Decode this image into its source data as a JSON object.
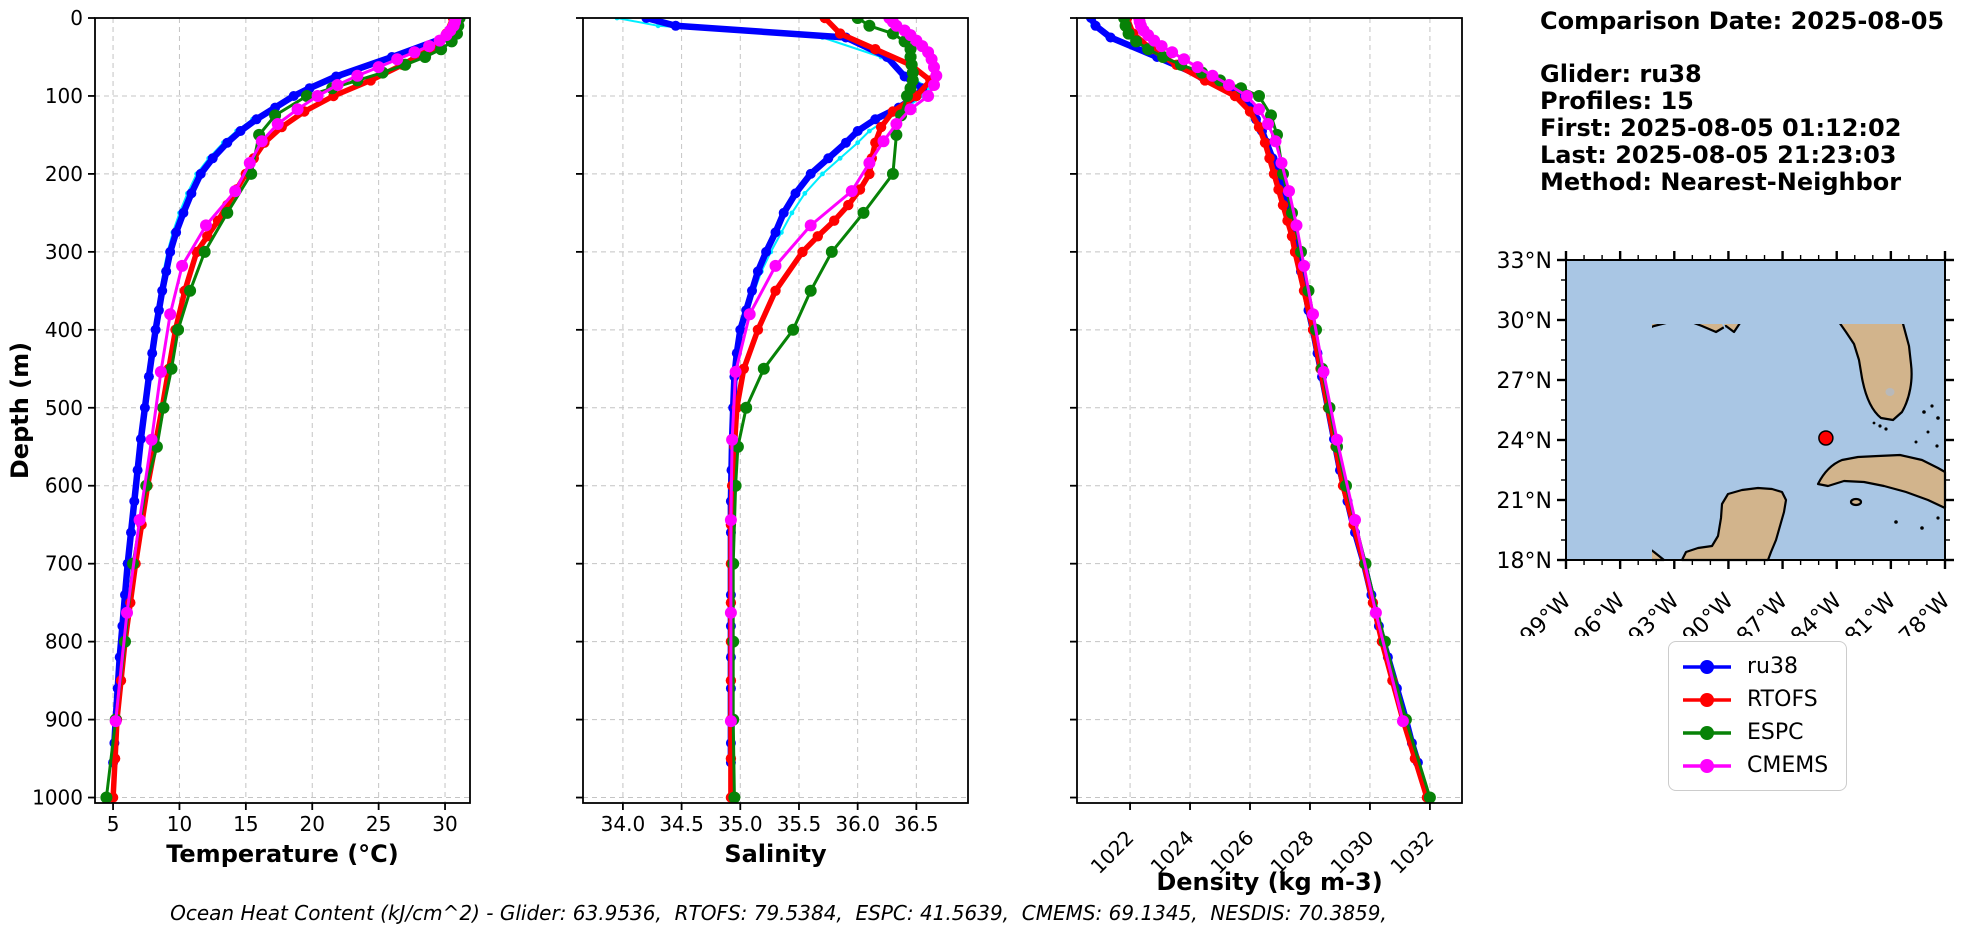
{
  "info": {
    "comparison_date": "Comparison Date: 2025-08-05",
    "glider": "Glider: ru38",
    "profiles": "Profiles: 15",
    "first": "First: 2025-08-05 01:12:02",
    "last": "Last: 2025-08-05 21:23:03",
    "method": "Method: Nearest-Neighbor"
  },
  "footer": {
    "ohc": "Ocean Heat Content (kJ/cm^2) - Glider: 63.9536,  RTOFS: 79.5384,  ESPC: 41.5639,  CMEMS: 69.1345,  NESDIS: 70.3859,"
  },
  "map": {
    "lat_tick_values": [
      33,
      30,
      27,
      24,
      21,
      18
    ],
    "lat_tick_labels": [
      "33°N",
      "30°N",
      "27°N",
      "24°N",
      "21°N",
      "18°N"
    ],
    "lon_tick_values": [
      99,
      96,
      93,
      90,
      87,
      84,
      81,
      78
    ],
    "lon_tick_labels": [
      "99°W",
      "96°W",
      "93°W",
      "90°W",
      "87°W",
      "84°W",
      "81°W",
      "78°W"
    ],
    "lon_range": [
      99,
      78
    ],
    "lat_range": [
      33,
      18
    ],
    "land_color": "#d2b48c",
    "ocean_color": "#a9c6e4",
    "coastline_color": "#000000",
    "river_color": "#a6c8ea",
    "marker": {
      "lon": 84.6,
      "lat": 24.1,
      "color": "#ff0000"
    }
  },
  "chart_data": {
    "type": "line",
    "subtype": "depth-profiles",
    "grid": true,
    "depth_axis": {
      "label": "Depth (m)",
      "tick_values": [
        0,
        100,
        200,
        300,
        400,
        500,
        600,
        700,
        800,
        900,
        1000
      ],
      "tick_labels": [
        "0",
        "100",
        "200",
        "300",
        "400",
        "500",
        "600",
        "700",
        "800",
        "900",
        "1000"
      ],
      "range": [
        0,
        1007
      ]
    },
    "panels": [
      {
        "key": "temperature",
        "xlabel": "Temperature (°C)",
        "tick_values": [
          5,
          10,
          15,
          20,
          25,
          30
        ],
        "tick_labels": [
          "5",
          "10",
          "15",
          "20",
          "25",
          "30"
        ],
        "range": [
          3.64,
          31.88
        ],
        "tick_rotation": 0
      },
      {
        "key": "salinity",
        "xlabel": "Salinity",
        "tick_values": [
          34.0,
          34.5,
          35.0,
          35.5,
          36.0,
          36.5
        ],
        "tick_labels": [
          "34.0",
          "34.5",
          "35.0",
          "35.5",
          "36.0",
          "36.5"
        ],
        "range": [
          33.66,
          36.94
        ],
        "tick_rotation": 0
      },
      {
        "key": "density",
        "xlabel": "Density (kg m-3)",
        "tick_values": [
          1022,
          1024,
          1026,
          1028,
          1030,
          1032
        ],
        "tick_labels": [
          "1022",
          "1024",
          "1026",
          "1028",
          "1030",
          "1032"
        ],
        "range": [
          1020.23,
          1033.07
        ],
        "tick_rotation": 45
      }
    ],
    "series": [
      {
        "name": "glider-raw",
        "color": "#00eeff",
        "line_width": 2,
        "marker_radius": 2.4,
        "in_legend": false,
        "depths": [
          0,
          10,
          25,
          50,
          75,
          90,
          100,
          115,
          130,
          145,
          160,
          180,
          200,
          225,
          250,
          275,
          300,
          325,
          350,
          375,
          400,
          430,
          460,
          500,
          540,
          580,
          620,
          660,
          700,
          740,
          780,
          820,
          860,
          900,
          930,
          955
        ],
        "temperature": [
          30.9,
          30.8,
          30.3,
          26.5,
          22.1,
          20.0,
          18.8,
          17.0,
          15.5,
          14.3,
          13.3,
          12.2,
          11.3,
          10.6,
          10.0,
          9.5,
          9.1,
          8.8,
          8.55,
          8.3,
          8.05,
          7.8,
          7.6,
          7.3,
          7.0,
          6.75,
          6.5,
          6.25,
          6.0,
          5.8,
          5.6,
          5.45,
          5.3,
          5.15,
          5.05,
          4.95
        ],
        "salinity": [
          33.95,
          34.3,
          35.7,
          36.2,
          36.45,
          36.6,
          36.55,
          36.42,
          36.25,
          36.1,
          36.0,
          35.85,
          35.7,
          35.55,
          35.44,
          35.35,
          35.26,
          35.18,
          35.12,
          35.07,
          35.02,
          34.98,
          34.95,
          34.93,
          34.92,
          34.91,
          34.91,
          34.91,
          34.91,
          34.91,
          34.91,
          34.91,
          34.91,
          34.91,
          34.91,
          34.91
        ],
        "density": [
          1020.6,
          1020.75,
          1021.25,
          1022.8,
          1024.3,
          1025.1,
          1025.65,
          1025.9,
          1026.1,
          1026.3,
          1026.45,
          1026.65,
          1026.85,
          1027.05,
          1027.2,
          1027.35,
          1027.5,
          1027.62,
          1027.77,
          1027.88,
          1028.02,
          1028.18,
          1028.33,
          1028.53,
          1028.73,
          1028.93,
          1029.18,
          1029.43,
          1029.73,
          1029.98,
          1030.23,
          1030.53,
          1030.83,
          1031.13,
          1031.33,
          1031.53
        ]
      },
      {
        "name": "ru38",
        "color": "#0000ff",
        "line_width": 6.5,
        "marker_radius": 5,
        "in_legend": true,
        "depths": [
          0,
          10,
          25,
          50,
          75,
          90,
          100,
          115,
          130,
          145,
          160,
          180,
          200,
          225,
          250,
          275,
          300,
          325,
          350,
          375,
          400,
          430,
          460,
          500,
          540,
          580,
          620,
          660,
          700,
          740,
          780,
          820,
          860,
          900,
          930,
          955
        ],
        "temperature": [
          30.9,
          30.7,
          30.0,
          26.0,
          21.8,
          19.8,
          18.6,
          17.2,
          15.8,
          14.6,
          13.6,
          12.5,
          11.6,
          10.9,
          10.3,
          9.75,
          9.3,
          9.0,
          8.7,
          8.45,
          8.2,
          7.95,
          7.7,
          7.4,
          7.1,
          6.85,
          6.6,
          6.35,
          6.1,
          5.9,
          5.7,
          5.5,
          5.35,
          5.2,
          5.1,
          5.0
        ],
        "salinity": [
          34.2,
          34.45,
          35.9,
          36.25,
          36.4,
          36.55,
          36.5,
          36.35,
          36.15,
          36.0,
          35.9,
          35.75,
          35.6,
          35.47,
          35.37,
          35.3,
          35.22,
          35.15,
          35.1,
          35.05,
          35.0,
          34.97,
          34.95,
          34.94,
          34.93,
          34.925,
          34.92,
          34.92,
          34.92,
          34.92,
          34.92,
          34.92,
          34.92,
          34.92,
          34.92,
          34.92
        ],
        "density": [
          1020.7,
          1020.85,
          1021.35,
          1022.9,
          1024.4,
          1025.2,
          1025.75,
          1026.0,
          1026.2,
          1026.4,
          1026.55,
          1026.75,
          1026.95,
          1027.15,
          1027.3,
          1027.45,
          1027.6,
          1027.7,
          1027.85,
          1027.95,
          1028.1,
          1028.25,
          1028.4,
          1028.6,
          1028.8,
          1029.0,
          1029.25,
          1029.5,
          1029.8,
          1030.05,
          1030.3,
          1030.6,
          1030.9,
          1031.2,
          1031.4,
          1031.6
        ]
      },
      {
        "name": "RTOFS",
        "color": "#ff0000",
        "line_width": 5.5,
        "marker_radius": 5.2,
        "in_legend": true,
        "depths": [
          0,
          20,
          40,
          60,
          80,
          100,
          120,
          140,
          160,
          180,
          200,
          220,
          240,
          260,
          280,
          300,
          350,
          400,
          450,
          500,
          550,
          600,
          650,
          700,
          750,
          800,
          850,
          900,
          950,
          1000
        ],
        "temperature": [
          30.6,
          30.1,
          28.9,
          26.8,
          24.4,
          21.6,
          19.4,
          17.7,
          16.4,
          15.6,
          15.0,
          14.3,
          13.6,
          12.9,
          12.1,
          11.3,
          10.4,
          9.7,
          9.2,
          8.7,
          8.15,
          7.6,
          7.15,
          6.7,
          6.3,
          5.9,
          5.6,
          5.3,
          5.15,
          5.0
        ],
        "salinity": [
          35.72,
          35.85,
          36.15,
          36.45,
          36.62,
          36.5,
          36.3,
          36.2,
          36.15,
          36.12,
          36.1,
          36.02,
          35.92,
          35.8,
          35.66,
          35.53,
          35.3,
          35.15,
          35.03,
          34.97,
          34.95,
          34.93,
          34.92,
          34.92,
          34.92,
          34.92,
          34.92,
          34.92,
          34.92,
          34.92
        ],
        "density": [
          1021.9,
          1022.1,
          1022.7,
          1023.55,
          1024.5,
          1025.5,
          1026.0,
          1026.3,
          1026.5,
          1026.65,
          1026.8,
          1026.95,
          1027.1,
          1027.25,
          1027.4,
          1027.5,
          1027.8,
          1028.1,
          1028.35,
          1028.6,
          1028.85,
          1029.1,
          1029.45,
          1029.8,
          1030.1,
          1030.4,
          1030.75,
          1031.1,
          1031.5,
          1031.9
        ]
      },
      {
        "name": "ESPC",
        "color": "#078207",
        "line_width": 3,
        "marker_radius": 6,
        "in_legend": true,
        "depths": [
          0,
          10,
          20,
          30,
          40,
          50,
          60,
          70,
          80,
          90,
          100,
          125,
          150,
          200,
          250,
          300,
          350,
          400,
          450,
          500,
          550,
          600,
          700,
          800,
          900,
          1000
        ],
        "temperature": [
          31.1,
          31.0,
          30.9,
          30.5,
          29.7,
          28.5,
          27.0,
          25.3,
          23.4,
          21.5,
          19.6,
          17.2,
          16.0,
          15.4,
          13.6,
          11.9,
          10.8,
          9.9,
          9.4,
          8.8,
          8.3,
          7.5,
          6.5,
          5.9,
          5.2,
          4.5
        ],
        "salinity": [
          36.0,
          36.1,
          36.3,
          36.4,
          36.45,
          36.45,
          36.46,
          36.47,
          36.47,
          36.45,
          36.42,
          36.37,
          36.33,
          36.3,
          36.05,
          35.78,
          35.6,
          35.45,
          35.2,
          35.05,
          34.98,
          34.96,
          34.94,
          34.94,
          34.94,
          34.95
        ],
        "density": [
          1021.8,
          1021.85,
          1021.95,
          1022.2,
          1022.6,
          1023.1,
          1023.7,
          1024.4,
          1025.0,
          1025.7,
          1026.3,
          1026.7,
          1026.9,
          1027.1,
          1027.4,
          1027.7,
          1027.95,
          1028.2,
          1028.4,
          1028.65,
          1028.9,
          1029.2,
          1029.85,
          1030.5,
          1031.2,
          1032.0
        ]
      },
      {
        "name": "CMEMS",
        "color": "#ff00ff",
        "line_width": 3,
        "marker_radius": 6,
        "in_legend": true,
        "depths": [
          0,
          5,
          10,
          16,
          22,
          29,
          36,
          44,
          53,
          63,
          74,
          86,
          100,
          117,
          136,
          158,
          186,
          222,
          266,
          318,
          380,
          454,
          541,
          644,
          763,
          902
        ],
        "temperature": [
          30.8,
          30.75,
          30.65,
          30.4,
          30.1,
          29.6,
          28.8,
          27.7,
          26.4,
          25.0,
          23.4,
          21.9,
          20.4,
          18.9,
          17.4,
          16.2,
          15.3,
          14.2,
          12.0,
          10.2,
          9.3,
          8.6,
          7.9,
          7.0,
          6.05,
          5.2
        ],
        "salinity": [
          36.27,
          36.3,
          36.33,
          36.4,
          36.45,
          36.5,
          36.55,
          36.6,
          36.63,
          36.65,
          36.67,
          36.65,
          36.6,
          36.45,
          36.33,
          36.22,
          36.1,
          35.95,
          35.6,
          35.3,
          35.08,
          34.96,
          34.93,
          34.92,
          34.92,
          34.92
        ],
        "density": [
          1022.3,
          1022.32,
          1022.36,
          1022.45,
          1022.6,
          1022.8,
          1023.05,
          1023.4,
          1023.8,
          1024.25,
          1024.75,
          1025.3,
          1025.9,
          1026.3,
          1026.6,
          1026.85,
          1027.05,
          1027.3,
          1027.55,
          1027.8,
          1028.1,
          1028.45,
          1028.9,
          1029.5,
          1030.2,
          1031.1
        ]
      }
    ]
  },
  "legend": {
    "order": [
      "ru38",
      "RTOFS",
      "ESPC",
      "CMEMS"
    ]
  }
}
